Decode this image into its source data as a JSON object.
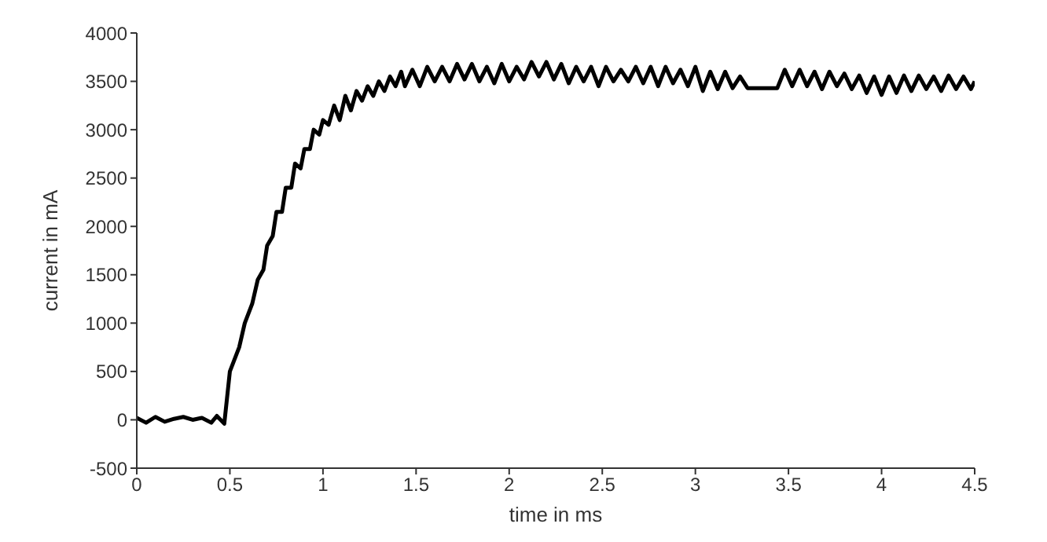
{
  "chart_data": {
    "type": "line",
    "xlabel": "time in ms",
    "ylabel": "current in mA",
    "xlim": [
      0,
      4.5
    ],
    "xticks": [
      0,
      0.5,
      1,
      1.5,
      2,
      2.5,
      3,
      3.5,
      4,
      4.5
    ],
    "ylim": [
      -500,
      4000
    ],
    "yticks": [
      -500,
      0,
      500,
      1000,
      1500,
      2000,
      2500,
      3000,
      3500,
      4000
    ],
    "grid": false,
    "legend": false,
    "marker": "none",
    "line_style": "solid",
    "x": [
      0,
      0.05,
      0.1,
      0.15,
      0.2,
      0.25,
      0.3,
      0.35,
      0.4,
      0.43,
      0.47,
      0.5,
      0.55,
      0.58,
      0.62,
      0.65,
      0.68,
      0.7,
      0.73,
      0.75,
      0.78,
      0.8,
      0.83,
      0.85,
      0.88,
      0.9,
      0.93,
      0.95,
      0.98,
      1,
      1.03,
      1.06,
      1.09,
      1.12,
      1.15,
      1.18,
      1.21,
      1.24,
      1.27,
      1.3,
      1.33,
      1.36,
      1.39,
      1.42,
      1.44,
      1.48,
      1.52,
      1.56,
      1.6,
      1.64,
      1.68,
      1.72,
      1.76,
      1.8,
      1.84,
      1.88,
      1.92,
      1.96,
      2,
      2.04,
      2.08,
      2.12,
      2.16,
      2.2,
      2.24,
      2.28,
      2.32,
      2.36,
      2.4,
      2.44,
      2.48,
      2.52,
      2.56,
      2.6,
      2.64,
      2.68,
      2.72,
      2.76,
      2.8,
      2.84,
      2.88,
      2.92,
      2.96,
      3,
      3.04,
      3.08,
      3.12,
      3.16,
      3.2,
      3.24,
      3.28,
      3.32,
      3.36,
      3.4,
      3.44,
      3.48,
      3.52,
      3.56,
      3.6,
      3.64,
      3.68,
      3.72,
      3.76,
      3.8,
      3.84,
      3.88,
      3.92,
      3.96,
      4,
      4.04,
      4.08,
      4.12,
      4.16,
      4.2,
      4.24,
      4.28,
      4.32,
      4.36,
      4.4,
      4.44,
      4.48,
      4.5
    ],
    "series": [
      {
        "color": "#000000",
        "values": [
          20,
          -30,
          30,
          -20,
          10,
          30,
          0,
          20,
          -30,
          40,
          -40,
          500,
          750,
          1000,
          1200,
          1450,
          1550,
          1800,
          1900,
          2150,
          2150,
          2400,
          2400,
          2650,
          2600,
          2800,
          2800,
          3000,
          2950,
          3100,
          3050,
          3250,
          3100,
          3350,
          3200,
          3400,
          3300,
          3450,
          3350,
          3500,
          3400,
          3550,
          3450,
          3600,
          3450,
          3620,
          3450,
          3650,
          3500,
          3650,
          3500,
          3680,
          3520,
          3680,
          3500,
          3650,
          3480,
          3680,
          3500,
          3650,
          3520,
          3700,
          3550,
          3700,
          3520,
          3680,
          3480,
          3650,
          3500,
          3650,
          3450,
          3650,
          3500,
          3620,
          3500,
          3650,
          3480,
          3650,
          3450,
          3650,
          3480,
          3620,
          3450,
          3650,
          3400,
          3600,
          3420,
          3600,
          3430,
          3550,
          3430,
          3430,
          3430,
          3430,
          3430,
          3620,
          3450,
          3620,
          3450,
          3600,
          3420,
          3600,
          3450,
          3580,
          3420,
          3560,
          3380,
          3550,
          3360,
          3550,
          3380,
          3560,
          3400,
          3560,
          3420,
          3550,
          3400,
          3560,
          3420,
          3550,
          3420,
          3500
        ]
      }
    ]
  }
}
